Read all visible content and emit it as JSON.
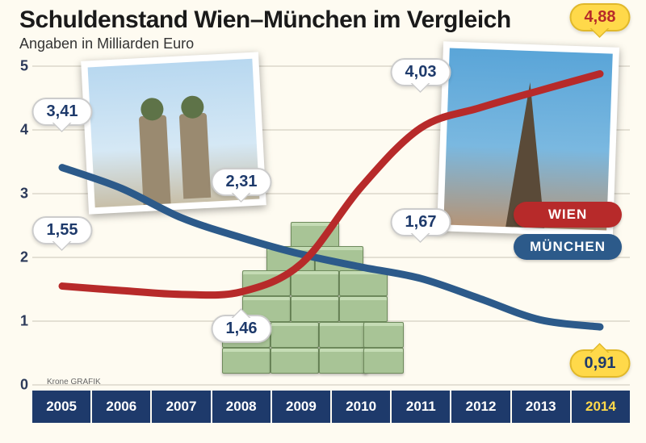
{
  "title": "Schuldenstand Wien–München im Vergleich",
  "subtitle": "Angaben in Milliarden Euro",
  "credit": "Krone GRAFIK",
  "chart": {
    "type": "line",
    "background_color": "#fefbf1",
    "grid_color": "#e4e0d4",
    "ylim": [
      0,
      5
    ],
    "ytick_step": 1,
    "yticks": [
      0,
      1,
      2,
      3,
      4,
      5
    ],
    "categories": [
      "2005",
      "2006",
      "2007",
      "2008",
      "2009",
      "2010",
      "2011",
      "2012",
      "2013",
      "2014"
    ],
    "highlight_category": "2014",
    "xaxis_bg": "#1e3a6b",
    "xaxis_text": "#ffffff",
    "xaxis_highlight_text": "#ffd94a",
    "line_width": 9,
    "series": {
      "wien": {
        "label": "WIEN",
        "color": "#b72a2a",
        "values": [
          1.55,
          1.48,
          1.42,
          1.46,
          1.9,
          3.1,
          4.03,
          4.35,
          4.62,
          4.88
        ]
      },
      "munchen": {
        "label": "MÜNCHEN",
        "color": "#2c5a8a",
        "values": [
          3.41,
          3.08,
          2.62,
          2.31,
          2.05,
          1.85,
          1.67,
          1.35,
          1.02,
          0.91
        ]
      }
    },
    "callouts": [
      {
        "series": "munchen",
        "year": "2005",
        "value": "3,41",
        "pos": "top",
        "final": false
      },
      {
        "series": "wien",
        "year": "2005",
        "value": "1,55",
        "pos": "top",
        "final": false
      },
      {
        "series": "munchen",
        "year": "2008",
        "value": "2,31",
        "pos": "top",
        "final": false
      },
      {
        "series": "wien",
        "year": "2008",
        "value": "1,46",
        "pos": "bottom",
        "final": false
      },
      {
        "series": "wien",
        "year": "2011",
        "value": "4,03",
        "pos": "top",
        "final": false
      },
      {
        "series": "munchen",
        "year": "2011",
        "value": "1,67",
        "pos": "top",
        "final": false
      },
      {
        "series": "wien",
        "year": "2014",
        "value": "4,88",
        "pos": "top",
        "final": true
      },
      {
        "series": "munchen",
        "year": "2014",
        "value": "0,91",
        "pos": "bottom",
        "final": true
      }
    ],
    "callout_bg": "#ffffff",
    "callout_final_bg": "#ffd94a",
    "label_fontsize": 18,
    "callout_fontsize": 20
  },
  "legend": {
    "items": [
      {
        "key": "wien",
        "label": "WIEN",
        "bg": "#b72a2a"
      },
      {
        "key": "munchen",
        "label": "MÜNCHEN",
        "bg": "#2c5a8a"
      }
    ]
  }
}
